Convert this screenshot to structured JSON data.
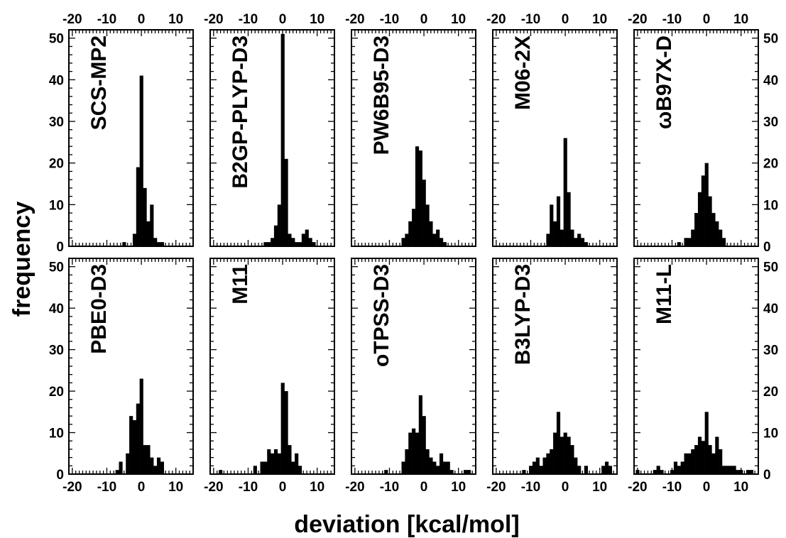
{
  "chart_data": {
    "type": "bar",
    "xlabel": "deviation [kcal/mol]",
    "ylabel": "frequency",
    "xlim": [
      -21,
      15
    ],
    "ylim": [
      0,
      52
    ],
    "x_ticks": [
      -20,
      -10,
      0,
      10
    ],
    "y_ticks": [
      0,
      10,
      20,
      30,
      40,
      50
    ],
    "bin_width": 1,
    "panels": [
      {
        "name": "SCS-MP2",
        "bins": [
          [
            -5,
            1
          ],
          [
            -2,
            3
          ],
          [
            -1,
            19
          ],
          [
            0,
            41
          ],
          [
            1,
            14
          ],
          [
            2,
            6
          ],
          [
            3,
            10
          ],
          [
            4,
            2
          ],
          [
            5,
            1
          ],
          [
            6,
            1
          ]
        ]
      },
      {
        "name": "B2GP-PLYP-D3",
        "bins": [
          [
            -5,
            1
          ],
          [
            -4,
            1
          ],
          [
            -3,
            2
          ],
          [
            -2,
            5
          ],
          [
            -1,
            10
          ],
          [
            0,
            51
          ],
          [
            1,
            21
          ],
          [
            2,
            3
          ],
          [
            3,
            2
          ],
          [
            4,
            1
          ],
          [
            5,
            1
          ],
          [
            6,
            3
          ],
          [
            7,
            4
          ],
          [
            8,
            2
          ],
          [
            9,
            1
          ]
        ]
      },
      {
        "name": "PW6B95-D3",
        "bins": [
          [
            -6,
            2
          ],
          [
            -5,
            3
          ],
          [
            -4,
            6
          ],
          [
            -3,
            9
          ],
          [
            -2,
            24
          ],
          [
            -1,
            23
          ],
          [
            0,
            16
          ],
          [
            1,
            10
          ],
          [
            2,
            6
          ],
          [
            3,
            3
          ],
          [
            4,
            4
          ],
          [
            5,
            2
          ],
          [
            6,
            1
          ]
        ]
      },
      {
        "name": "M06-2X",
        "bins": [
          [
            -5,
            3
          ],
          [
            -4,
            10
          ],
          [
            -3,
            6
          ],
          [
            -2,
            12
          ],
          [
            -1,
            4
          ],
          [
            0,
            26
          ],
          [
            1,
            13
          ],
          [
            2,
            4
          ],
          [
            3,
            2
          ],
          [
            4,
            3
          ],
          [
            5,
            2
          ],
          [
            6,
            1
          ]
        ]
      },
      {
        "name": "ωB97X-D",
        "bins": [
          [
            -8,
            1
          ],
          [
            -6,
            2
          ],
          [
            -5,
            2
          ],
          [
            -4,
            4
          ],
          [
            -3,
            8
          ],
          [
            -2,
            13
          ],
          [
            -1,
            17
          ],
          [
            0,
            20
          ],
          [
            1,
            12
          ],
          [
            2,
            8
          ],
          [
            3,
            6
          ],
          [
            4,
            4
          ],
          [
            5,
            2
          ]
        ]
      },
      {
        "name": "PBE0-D3",
        "bins": [
          [
            -7,
            1
          ],
          [
            -6,
            3
          ],
          [
            -4,
            5
          ],
          [
            -3,
            14
          ],
          [
            -2,
            13
          ],
          [
            -1,
            17
          ],
          [
            0,
            23
          ],
          [
            1,
            7
          ],
          [
            2,
            7
          ],
          [
            3,
            4
          ],
          [
            4,
            2
          ],
          [
            5,
            4
          ],
          [
            6,
            3
          ]
        ]
      },
      {
        "name": "M11",
        "bins": [
          [
            -18,
            1
          ],
          [
            -8,
            2
          ],
          [
            -6,
            3
          ],
          [
            -5,
            3
          ],
          [
            -4,
            6
          ],
          [
            -3,
            5
          ],
          [
            -2,
            6
          ],
          [
            -1,
            5
          ],
          [
            0,
            22
          ],
          [
            1,
            20
          ],
          [
            2,
            7
          ],
          [
            3,
            3
          ],
          [
            4,
            5
          ],
          [
            5,
            2
          ]
        ]
      },
      {
        "name": "oTPSS-D3",
        "bins": [
          [
            -11,
            1
          ],
          [
            -6,
            3
          ],
          [
            -5,
            6
          ],
          [
            -4,
            10
          ],
          [
            -3,
            11
          ],
          [
            -2,
            10
          ],
          [
            -1,
            19
          ],
          [
            0,
            14
          ],
          [
            1,
            6
          ],
          [
            2,
            4
          ],
          [
            3,
            3
          ],
          [
            4,
            2
          ],
          [
            5,
            5
          ],
          [
            6,
            3
          ],
          [
            7,
            3
          ],
          [
            8,
            1
          ],
          [
            12,
            1
          ],
          [
            13,
            1
          ]
        ]
      },
      {
        "name": "B3LYP-D3",
        "bins": [
          [
            -12,
            1
          ],
          [
            -10,
            2
          ],
          [
            -9,
            3
          ],
          [
            -8,
            4
          ],
          [
            -7,
            2
          ],
          [
            -6,
            4
          ],
          [
            -5,
            5
          ],
          [
            -4,
            6
          ],
          [
            -3,
            10
          ],
          [
            -2,
            15
          ],
          [
            -1,
            9
          ],
          [
            0,
            10
          ],
          [
            1,
            9
          ],
          [
            2,
            7
          ],
          [
            3,
            4
          ],
          [
            4,
            2
          ],
          [
            6,
            2
          ],
          [
            11,
            2
          ],
          [
            12,
            3
          ],
          [
            13,
            2
          ]
        ]
      },
      {
        "name": "M11-L",
        "bins": [
          [
            -20,
            1
          ],
          [
            -15,
            1
          ],
          [
            -14,
            2
          ],
          [
            -13,
            1
          ],
          [
            -10,
            1
          ],
          [
            -9,
            3
          ],
          [
            -8,
            2
          ],
          [
            -7,
            3
          ],
          [
            -6,
            5
          ],
          [
            -5,
            5
          ],
          [
            -4,
            6
          ],
          [
            -3,
            7
          ],
          [
            -2,
            9
          ],
          [
            -1,
            8
          ],
          [
            0,
            15
          ],
          [
            1,
            7
          ],
          [
            2,
            5
          ],
          [
            3,
            9
          ],
          [
            4,
            6
          ],
          [
            5,
            2
          ],
          [
            6,
            2
          ],
          [
            7,
            2
          ],
          [
            8,
            2
          ],
          [
            9,
            1
          ],
          [
            10,
            1
          ],
          [
            12,
            1
          ],
          [
            13,
            1
          ]
        ]
      }
    ]
  }
}
